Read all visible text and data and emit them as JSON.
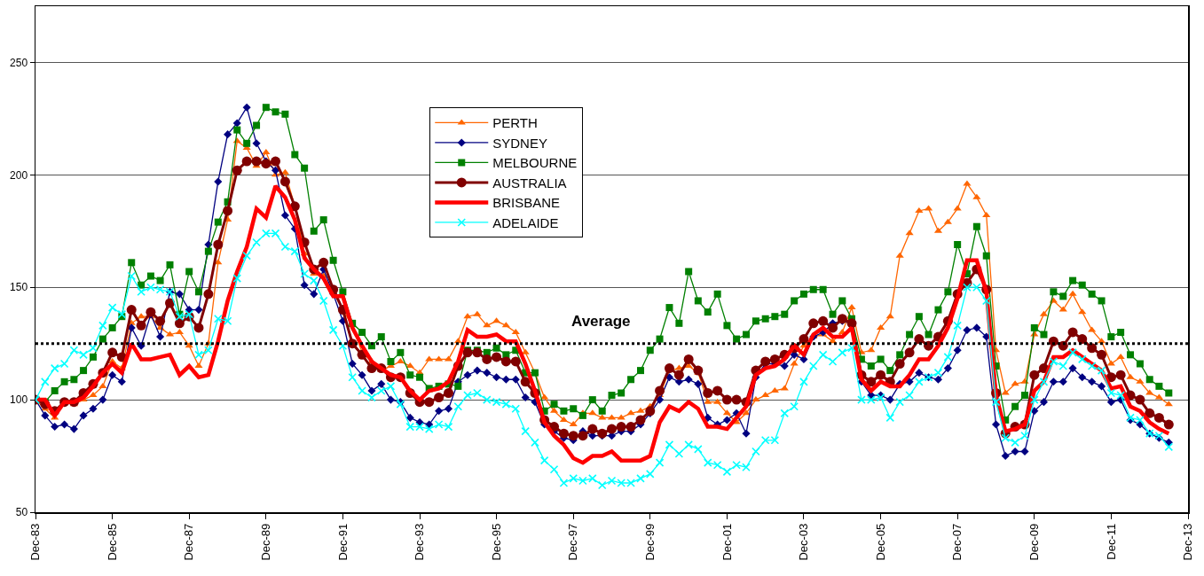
{
  "chart_data": {
    "type": "line",
    "x": [
      "1983-12",
      "1984-03",
      "1984-06",
      "1984-09",
      "1984-12",
      "1985-03",
      "1985-06",
      "1985-09",
      "1985-12",
      "1986-03",
      "1986-06",
      "1986-09",
      "1986-12",
      "1987-03",
      "1987-06",
      "1987-09",
      "1987-12",
      "1988-03",
      "1988-06",
      "1988-09",
      "1988-12",
      "1989-03",
      "1989-06",
      "1989-09",
      "1989-12",
      "1990-03",
      "1990-06",
      "1990-09",
      "1990-12",
      "1991-03",
      "1991-06",
      "1991-09",
      "1991-12",
      "1992-03",
      "1992-06",
      "1992-09",
      "1992-12",
      "1993-03",
      "1993-06",
      "1993-09",
      "1993-12",
      "1994-03",
      "1994-06",
      "1994-09",
      "1994-12",
      "1995-03",
      "1995-06",
      "1995-09",
      "1995-12",
      "1996-03",
      "1996-06",
      "1996-09",
      "1996-12",
      "1997-03",
      "1997-06",
      "1997-09",
      "1997-12",
      "1998-03",
      "1998-06",
      "1998-09",
      "1998-12",
      "1999-03",
      "1999-06",
      "1999-09",
      "1999-12",
      "2000-03",
      "2000-06",
      "2000-09",
      "2000-12",
      "2001-03",
      "2001-06",
      "2001-09",
      "2001-12",
      "2002-03",
      "2002-06",
      "2002-09",
      "2002-12",
      "2003-03",
      "2003-06",
      "2003-09",
      "2003-12",
      "2004-03",
      "2004-06",
      "2004-09",
      "2004-12",
      "2005-03",
      "2005-06",
      "2005-09",
      "2005-12",
      "2006-03",
      "2006-06",
      "2006-09",
      "2006-12",
      "2007-03",
      "2007-06",
      "2007-09",
      "2007-12",
      "2008-03",
      "2008-06",
      "2008-09",
      "2008-12",
      "2009-03",
      "2009-06",
      "2009-09",
      "2009-12",
      "2010-03",
      "2010-06",
      "2010-09",
      "2010-12",
      "2011-03",
      "2011-06",
      "2011-09",
      "2011-12",
      "2012-03",
      "2012-06",
      "2012-09",
      "2012-12",
      "2013-03",
      "2013-06"
    ],
    "series": [
      {
        "name": "PERTH",
        "color": "#ff6600",
        "marker": "triangle",
        "values": [
          100,
          96,
          92,
          99,
          98,
          100,
          102,
          106,
          117,
          114,
          134,
          137,
          137,
          132,
          129,
          130,
          124,
          115,
          125,
          161,
          180,
          215,
          212,
          204,
          210,
          200,
          201,
          186,
          165,
          156,
          155,
          148,
          140,
          133,
          121,
          117,
          113,
          115,
          117,
          115,
          112,
          118,
          118,
          118,
          126,
          137,
          138,
          133,
          135,
          133,
          130,
          121,
          112,
          101,
          95,
          91,
          89,
          94,
          94,
          92,
          92,
          92,
          94,
          95,
          97,
          102,
          113,
          114,
          115,
          112,
          99,
          99,
          94,
          90,
          94,
          100,
          102,
          104,
          105,
          116,
          124,
          128,
          129,
          126,
          130,
          141,
          121,
          122,
          132,
          137,
          164,
          174,
          184,
          185,
          175,
          179,
          185,
          196,
          190,
          182,
          122,
          103,
          107,
          108,
          129,
          138,
          144,
          140,
          147,
          139,
          131,
          126,
          116,
          119,
          110,
          108,
          103,
          101,
          98
        ]
      },
      {
        "name": "SYDNEY",
        "color": "#000080",
        "marker": "diamond",
        "values": [
          100,
          93,
          88,
          89,
          87,
          93,
          96,
          100,
          111,
          108,
          132,
          124,
          138,
          128,
          148,
          147,
          140,
          140,
          169,
          197,
          218,
          223,
          230,
          214,
          206,
          202,
          182,
          176,
          151,
          147,
          158,
          147,
          135,
          116,
          111,
          104,
          107,
          100,
          99,
          92,
          90,
          89,
          95,
          96,
          108,
          111,
          113,
          112,
          110,
          109,
          109,
          101,
          99,
          89,
          86,
          83,
          82,
          86,
          84,
          84,
          84,
          86,
          86,
          89,
          94,
          100,
          110,
          108,
          109,
          107,
          92,
          89,
          91,
          94,
          85,
          110,
          116,
          116,
          115,
          120,
          118,
          128,
          130,
          134,
          135,
          134,
          108,
          102,
          102,
          100,
          107,
          108,
          112,
          110,
          109,
          114,
          122,
          131,
          132,
          128,
          89,
          75,
          77,
          77,
          95,
          99,
          108,
          108,
          114,
          110,
          108,
          106,
          99,
          100,
          91,
          89,
          85,
          83,
          81
        ]
      },
      {
        "name": "MELBOURNE",
        "color": "#008000",
        "marker": "square",
        "values": [
          100,
          99,
          104,
          108,
          109,
          113,
          119,
          127,
          132,
          137,
          161,
          151,
          155,
          153,
          160,
          138,
          157,
          148,
          166,
          179,
          188,
          220,
          214,
          222,
          230,
          228,
          227,
          209,
          203,
          175,
          180,
          162,
          148,
          134,
          130,
          124,
          128,
          117,
          121,
          111,
          110,
          105,
          106,
          107,
          106,
          122,
          122,
          121,
          123,
          120,
          122,
          112,
          112,
          95,
          98,
          95,
          96,
          93,
          100,
          95,
          102,
          103,
          109,
          113,
          122,
          127,
          141,
          134,
          157,
          144,
          139,
          147,
          133,
          127,
          129,
          135,
          136,
          137,
          138,
          144,
          147,
          149,
          149,
          138,
          144,
          136,
          118,
          115,
          118,
          113,
          120,
          129,
          137,
          129,
          140,
          148,
          169,
          156,
          177,
          164,
          115,
          91,
          97,
          102,
          132,
          129,
          148,
          146,
          153,
          151,
          147,
          144,
          128,
          130,
          120,
          116,
          109,
          106,
          103
        ]
      },
      {
        "name": "AUSTRALIA",
        "color": "#800000",
        "marker": "circle",
        "values": [
          100,
          98,
          95,
          99,
          99,
          103,
          107,
          112,
          121,
          119,
          140,
          133,
          139,
          135,
          143,
          134,
          137,
          132,
          147,
          169,
          184,
          202,
          206,
          206,
          205,
          206,
          197,
          186,
          170,
          158,
          161,
          149,
          140,
          125,
          120,
          114,
          114,
          110,
          110,
          103,
          99,
          99,
          101,
          103,
          115,
          121,
          121,
          118,
          119,
          117,
          117,
          108,
          103,
          91,
          88,
          85,
          84,
          84,
          87,
          85,
          87,
          88,
          88,
          91,
          95,
          104,
          114,
          111,
          118,
          113,
          103,
          104,
          100,
          100,
          99,
          113,
          117,
          118,
          120,
          123,
          127,
          134,
          135,
          132,
          136,
          134,
          111,
          108,
          111,
          108,
          116,
          121,
          127,
          124,
          128,
          135,
          147,
          152,
          158,
          149,
          103,
          85,
          88,
          89,
          111,
          114,
          126,
          124,
          130,
          127,
          123,
          120,
          110,
          111,
          102,
          100,
          94,
          92,
          89
        ]
      },
      {
        "name": "BRISBANE",
        "color": "#ff0000",
        "marker": "none",
        "values": [
          100,
          100,
          93,
          99,
          99,
          101,
          106,
          112,
          116,
          112,
          125,
          118,
          118,
          119,
          120,
          111,
          115,
          110,
          111,
          126,
          144,
          157,
          168,
          185,
          181,
          195,
          190,
          180,
          163,
          158,
          154,
          146,
          146,
          132,
          124,
          117,
          114,
          111,
          110,
          104,
          100,
          104,
          105,
          108,
          117,
          131,
          128,
          128,
          129,
          126,
          126,
          116,
          104,
          90,
          84,
          80,
          74,
          72,
          75,
          75,
          77,
          73,
          73,
          73,
          75,
          90,
          97,
          95,
          99,
          96,
          88,
          88,
          87,
          92,
          97,
          111,
          114,
          115,
          118,
          124,
          120,
          129,
          132,
          128,
          128,
          132,
          109,
          104,
          108,
          106,
          106,
          111,
          118,
          118,
          124,
          132,
          145,
          162,
          162,
          148,
          102,
          86,
          87,
          89,
          104,
          108,
          119,
          119,
          122,
          119,
          116,
          113,
          105,
          106,
          97,
          95,
          90,
          87,
          85
        ]
      },
      {
        "name": "ADELAIDE",
        "color": "#00ffff",
        "marker": "cross",
        "values": [
          100,
          108,
          114,
          116,
          122,
          120,
          123,
          133,
          141,
          138,
          155,
          148,
          150,
          149,
          148,
          137,
          138,
          120,
          122,
          136,
          135,
          154,
          164,
          170,
          174,
          174,
          168,
          166,
          156,
          153,
          144,
          131,
          124,
          110,
          104,
          101,
          104,
          106,
          98,
          88,
          88,
          87,
          89,
          88,
          97,
          102,
          103,
          100,
          99,
          98,
          96,
          86,
          81,
          73,
          69,
          63,
          65,
          64,
          65,
          62,
          64,
          63,
          63,
          65,
          67,
          72,
          80,
          76,
          80,
          78,
          72,
          71,
          68,
          71,
          70,
          77,
          82,
          82,
          94,
          97,
          108,
          115,
          120,
          117,
          121,
          123,
          100,
          100,
          101,
          92,
          99,
          102,
          108,
          110,
          112,
          119,
          133,
          150,
          150,
          144,
          99,
          83,
          81,
          84,
          100,
          108,
          117,
          115,
          121,
          118,
          115,
          113,
          103,
          102,
          92,
          91,
          85,
          84,
          79
        ]
      }
    ],
    "xlim": [
      "1983-12",
      "2013-12"
    ],
    "xticks": [
      {
        "value": "1983-12",
        "label": "Dec-83"
      },
      {
        "value": "1985-12",
        "label": "Dec-85"
      },
      {
        "value": "1987-12",
        "label": "Dec-87"
      },
      {
        "value": "1989-12",
        "label": "Dec-89"
      },
      {
        "value": "1991-12",
        "label": "Dec-91"
      },
      {
        "value": "1993-12",
        "label": "Dec-93"
      },
      {
        "value": "1995-12",
        "label": "Dec-95"
      },
      {
        "value": "1997-12",
        "label": "Dec-97"
      },
      {
        "value": "1999-12",
        "label": "Dec-99"
      },
      {
        "value": "2001-12",
        "label": "Dec-01"
      },
      {
        "value": "2003-12",
        "label": "Dec-03"
      },
      {
        "value": "2005-12",
        "label": "Dec-05"
      },
      {
        "value": "2007-12",
        "label": "Dec-07"
      },
      {
        "value": "2009-12",
        "label": "Dec-09"
      },
      {
        "value": "2011-12",
        "label": "Dec-11"
      },
      {
        "value": "2013-12",
        "label": "Dec-13"
      }
    ],
    "ylim": [
      50,
      275
    ],
    "yticks": [
      50,
      100,
      150,
      200,
      250
    ],
    "grid": "y",
    "legend": "top center",
    "ref_lines": [
      {
        "axis": "y",
        "value": 125,
        "label": "Average",
        "color": "#000000",
        "line_style": "dotted"
      }
    ]
  }
}
